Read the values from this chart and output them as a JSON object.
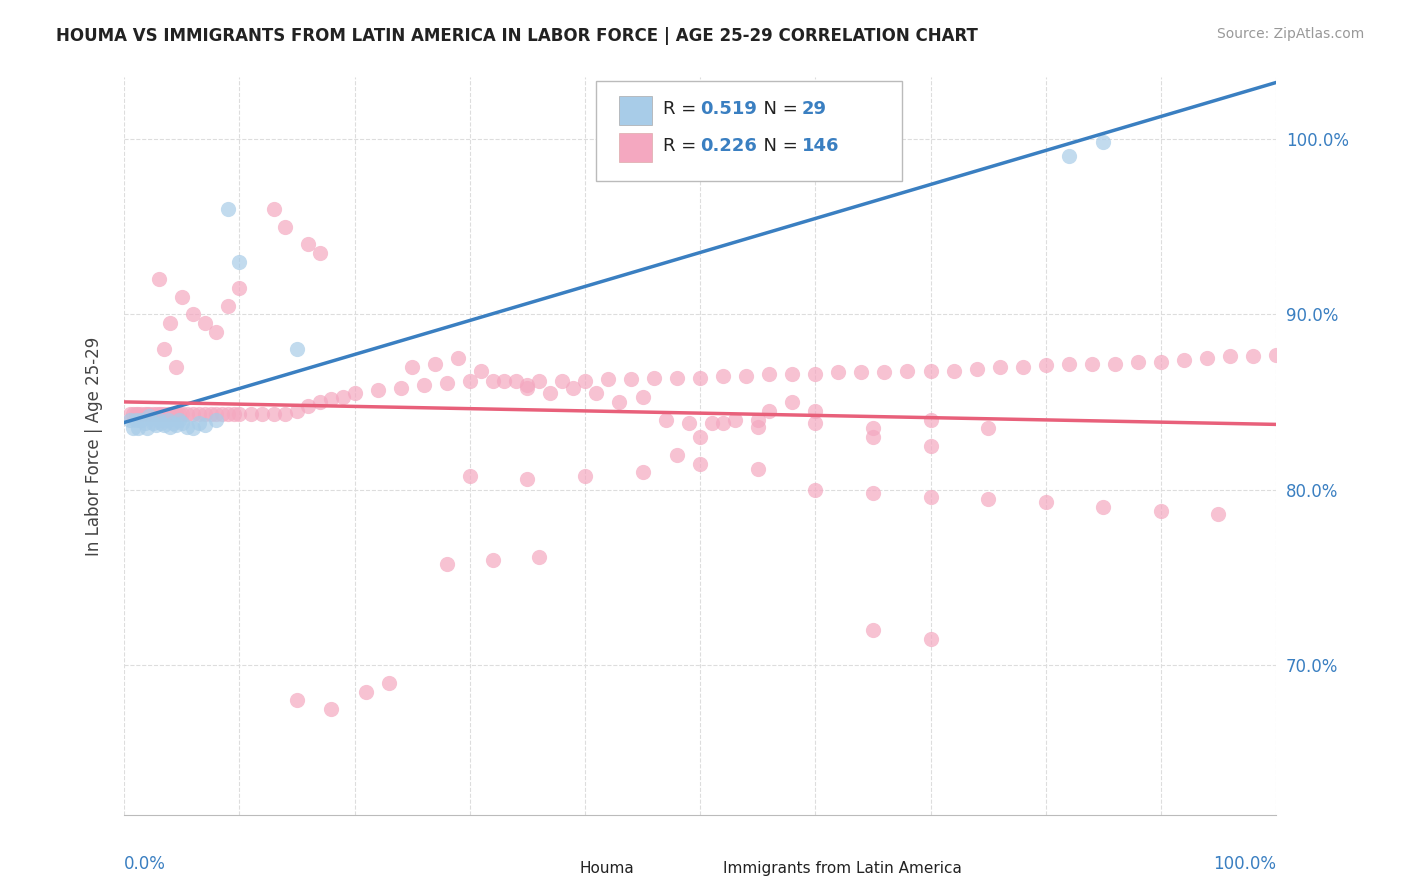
{
  "title": "HOUMA VS IMMIGRANTS FROM LATIN AMERICA IN LABOR FORCE | AGE 25-29 CORRELATION CHART",
  "source_text": "Source: ZipAtlas.com",
  "ylabel": "In Labor Force | Age 25-29",
  "legend_label1": "Houma",
  "legend_label2": "Immigrants from Latin America",
  "r1": 0.519,
  "n1": 29,
  "r2": 0.226,
  "n2": 146,
  "color1": "#a8cce8",
  "color2": "#f4a8c0",
  "line_color1": "#3a7fc1",
  "line_color2": "#e8607a",
  "ytick_labels": [
    "100.0%",
    "90.0%",
    "80.0%",
    "70.0%"
  ],
  "ytick_values": [
    1.0,
    0.9,
    0.8,
    0.7
  ],
  "xmin": 0.0,
  "xmax": 1.0,
  "ymin": 0.615,
  "ymax": 1.035,
  "background_color": "#ffffff",
  "grid_color": "#dddddd",
  "houma_x": [
    0.005,
    0.008,
    0.01,
    0.012,
    0.015,
    0.018,
    0.02,
    0.022,
    0.025,
    0.028,
    0.03,
    0.032,
    0.035,
    0.038,
    0.04,
    0.042,
    0.045,
    0.048,
    0.05,
    0.055,
    0.06,
    0.065,
    0.07,
    0.08,
    0.09,
    0.1,
    0.15,
    0.82,
    0.85
  ],
  "houma_y": [
    0.84,
    0.835,
    0.84,
    0.835,
    0.84,
    0.838,
    0.835,
    0.842,
    0.838,
    0.837,
    0.84,
    0.838,
    0.837,
    0.84,
    0.836,
    0.838,
    0.837,
    0.84,
    0.838,
    0.836,
    0.835,
    0.838,
    0.837,
    0.84,
    0.96,
    0.93,
    0.88,
    0.99,
    0.998
  ],
  "latin_x": [
    0.005,
    0.008,
    0.01,
    0.012,
    0.015,
    0.018,
    0.02,
    0.022,
    0.025,
    0.028,
    0.03,
    0.032,
    0.035,
    0.038,
    0.04,
    0.042,
    0.045,
    0.048,
    0.05,
    0.055,
    0.06,
    0.065,
    0.07,
    0.075,
    0.08,
    0.085,
    0.09,
    0.095,
    0.1,
    0.11,
    0.12,
    0.13,
    0.14,
    0.15,
    0.16,
    0.17,
    0.18,
    0.19,
    0.2,
    0.22,
    0.24,
    0.26,
    0.28,
    0.3,
    0.32,
    0.34,
    0.36,
    0.38,
    0.4,
    0.42,
    0.44,
    0.46,
    0.48,
    0.5,
    0.52,
    0.54,
    0.56,
    0.58,
    0.6,
    0.62,
    0.64,
    0.66,
    0.68,
    0.7,
    0.72,
    0.74,
    0.76,
    0.78,
    0.8,
    0.82,
    0.84,
    0.86,
    0.88,
    0.9,
    0.92,
    0.94,
    0.96,
    0.98,
    1.0,
    0.05,
    0.06,
    0.07,
    0.08,
    0.09,
    0.1,
    0.03,
    0.04,
    0.035,
    0.045,
    0.5,
    0.55,
    0.6,
    0.65,
    0.7,
    0.75,
    0.48,
    0.52,
    0.56,
    0.58,
    0.35,
    0.37,
    0.39,
    0.41,
    0.43,
    0.45,
    0.47,
    0.49,
    0.51,
    0.53,
    0.25,
    0.27,
    0.29,
    0.31,
    0.33,
    0.35,
    0.55,
    0.6,
    0.65,
    0.7,
    0.45,
    0.5,
    0.55,
    0.4,
    0.35,
    0.3,
    0.6,
    0.65,
    0.7,
    0.75,
    0.8,
    0.85,
    0.9,
    0.95,
    0.65,
    0.7,
    0.15,
    0.18,
    0.21,
    0.23,
    0.13,
    0.14,
    0.16,
    0.17,
    0.28,
    0.32,
    0.36
  ],
  "latin_y": [
    0.843,
    0.843,
    0.843,
    0.843,
    0.843,
    0.843,
    0.843,
    0.843,
    0.843,
    0.843,
    0.843,
    0.843,
    0.843,
    0.843,
    0.843,
    0.843,
    0.843,
    0.843,
    0.843,
    0.843,
    0.843,
    0.843,
    0.843,
    0.843,
    0.843,
    0.843,
    0.843,
    0.843,
    0.843,
    0.843,
    0.843,
    0.843,
    0.843,
    0.845,
    0.848,
    0.85,
    0.852,
    0.853,
    0.855,
    0.857,
    0.858,
    0.86,
    0.861,
    0.862,
    0.862,
    0.862,
    0.862,
    0.862,
    0.862,
    0.863,
    0.863,
    0.864,
    0.864,
    0.864,
    0.865,
    0.865,
    0.866,
    0.866,
    0.866,
    0.867,
    0.867,
    0.867,
    0.868,
    0.868,
    0.868,
    0.869,
    0.87,
    0.87,
    0.871,
    0.872,
    0.872,
    0.872,
    0.873,
    0.873,
    0.874,
    0.875,
    0.876,
    0.876,
    0.877,
    0.91,
    0.9,
    0.895,
    0.89,
    0.905,
    0.915,
    0.92,
    0.895,
    0.88,
    0.87,
    0.83,
    0.84,
    0.845,
    0.835,
    0.84,
    0.835,
    0.82,
    0.838,
    0.845,
    0.85,
    0.86,
    0.855,
    0.858,
    0.855,
    0.85,
    0.853,
    0.84,
    0.838,
    0.838,
    0.84,
    0.87,
    0.872,
    0.875,
    0.868,
    0.862,
    0.858,
    0.836,
    0.838,
    0.83,
    0.825,
    0.81,
    0.815,
    0.812,
    0.808,
    0.806,
    0.808,
    0.8,
    0.798,
    0.796,
    0.795,
    0.793,
    0.79,
    0.788,
    0.786,
    0.72,
    0.715,
    0.68,
    0.675,
    0.685,
    0.69,
    0.96,
    0.95,
    0.94,
    0.935,
    0.758,
    0.76,
    0.762
  ]
}
